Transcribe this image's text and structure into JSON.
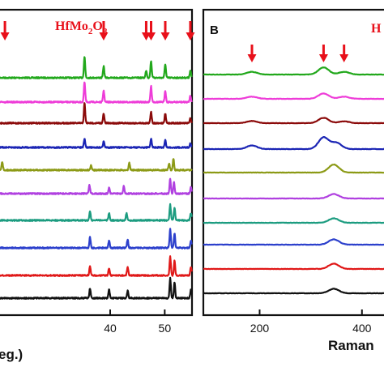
{
  "figure": {
    "panel_a_annotation": {
      "main": "HfMo",
      "sub1": "2",
      "mid": "O",
      "sub2": "8"
    },
    "panel_b_letter": "B",
    "panel_b_annotation_fragment": "H",
    "panel_a_xlabel_fragment": "eg.)",
    "panel_b_xlabel_fragment": "Raman",
    "arrow_color": "#e8101a"
  },
  "chart_data": [
    {
      "type": "line",
      "panel": "A",
      "title": "",
      "xlabel": "eg.)",
      "ylabel": "",
      "xlim": [
        19.5,
        55.0
      ],
      "xticks": [
        40,
        50
      ],
      "tick_labels": [
        "40",
        "50"
      ],
      "grid": false,
      "annotation": "HfMo2O8",
      "arrow_positions": [
        20.7,
        38.8,
        46.6,
        47.5,
        50.1,
        54.7
      ],
      "series": [
        {
          "color": "#22a81c",
          "offset": 9,
          "peaks": [
            [
              35.3,
              1.0
            ],
            [
              38.8,
              0.55
            ],
            [
              46.6,
              0.35
            ],
            [
              47.5,
              0.8
            ],
            [
              50.1,
              0.65
            ],
            [
              54.7,
              0.35
            ]
          ]
        },
        {
          "color": "#ee3cd8",
          "offset": 8,
          "peaks": [
            [
              35.3,
              0.95
            ],
            [
              38.8,
              0.55
            ],
            [
              47.5,
              0.75
            ],
            [
              50.1,
              0.55
            ],
            [
              54.7,
              0.3
            ]
          ]
        },
        {
          "color": "#8b0a0a",
          "offset": 7,
          "peaks": [
            [
              35.3,
              0.95
            ],
            [
              38.8,
              0.45
            ],
            [
              47.5,
              0.55
            ],
            [
              50.1,
              0.45
            ],
            [
              54.7,
              0.25
            ]
          ]
        },
        {
          "color": "#1a24b4",
          "offset": 6,
          "peaks": [
            [
              35.3,
              0.4
            ],
            [
              38.8,
              0.3
            ],
            [
              47.5,
              0.4
            ],
            [
              50.1,
              0.35
            ],
            [
              54.7,
              0.2
            ]
          ]
        },
        {
          "color": "#8c9a16",
          "offset": 5,
          "peaks": [
            [
              20.2,
              0.4
            ],
            [
              36.5,
              0.25
            ],
            [
              43.5,
              0.35
            ],
            [
              50.8,
              0.3
            ],
            [
              51.6,
              0.55
            ]
          ]
        },
        {
          "color": "#b040e0",
          "offset": 4,
          "peaks": [
            [
              36.2,
              0.4
            ],
            [
              39.8,
              0.3
            ],
            [
              42.5,
              0.35
            ],
            [
              51.0,
              0.7
            ],
            [
              51.7,
              0.55
            ],
            [
              54.8,
              0.3
            ]
          ]
        },
        {
          "color": "#1c9c80",
          "offset": 3,
          "peaks": [
            [
              36.3,
              0.45
            ],
            [
              39.8,
              0.35
            ],
            [
              43.0,
              0.35
            ],
            [
              51.0,
              0.75
            ],
            [
              51.8,
              0.6
            ],
            [
              54.8,
              0.35
            ]
          ]
        },
        {
          "color": "#2c40cc",
          "offset": 2,
          "peaks": [
            [
              36.3,
              0.5
            ],
            [
              39.8,
              0.35
            ],
            [
              43.2,
              0.4
            ],
            [
              51.0,
              0.9
            ],
            [
              51.8,
              0.7
            ],
            [
              54.8,
              0.35
            ]
          ]
        },
        {
          "color": "#e01818",
          "offset": 1,
          "peaks": [
            [
              36.3,
              0.45
            ],
            [
              39.8,
              0.35
            ],
            [
              43.2,
              0.4
            ],
            [
              51.0,
              0.9
            ],
            [
              51.8,
              0.7
            ],
            [
              54.8,
              0.4
            ]
          ]
        },
        {
          "color": "#111111",
          "offset": 0,
          "peaks": [
            [
              36.3,
              0.45
            ],
            [
              39.8,
              0.4
            ],
            [
              43.2,
              0.35
            ],
            [
              51.0,
              0.95
            ],
            [
              51.8,
              0.75
            ],
            [
              54.8,
              0.4
            ]
          ]
        }
      ]
    },
    {
      "type": "line",
      "panel": "B",
      "title": "",
      "xlabel": "Raman",
      "ylabel": "",
      "xlim": [
        90,
        470
      ],
      "xticks": [
        200,
        400
      ],
      "tick_labels": [
        "200",
        "400"
      ],
      "grid": false,
      "arrow_positions": [
        185,
        325,
        365
      ],
      "series": [
        {
          "color": "#22a81c",
          "offset": 9,
          "peaks": [
            [
              185,
              0.15
            ],
            [
              325,
              0.4
            ],
            [
              365,
              0.15
            ]
          ]
        },
        {
          "color": "#ee3cd8",
          "offset": 8,
          "peaks": [
            [
              185,
              0.12
            ],
            [
              325,
              0.3
            ],
            [
              365,
              0.12
            ]
          ]
        },
        {
          "color": "#8b0a0a",
          "offset": 7,
          "peaks": [
            [
              185,
              0.12
            ],
            [
              325,
              0.3
            ],
            [
              365,
              0.1
            ]
          ]
        },
        {
          "color": "#1a24b4",
          "offset": 6,
          "peaks": [
            [
              185,
              0.2
            ],
            [
              325,
              0.65
            ],
            [
              350,
              0.35
            ]
          ]
        },
        {
          "color": "#8c9a16",
          "offset": 5,
          "peaks": [
            [
              345,
              0.45
            ]
          ]
        },
        {
          "color": "#b040e0",
          "offset": 4,
          "peaks": [
            [
              345,
              0.25
            ]
          ]
        },
        {
          "color": "#1c9c80",
          "offset": 3,
          "peaks": [
            [
              345,
              0.25
            ]
          ]
        },
        {
          "color": "#2c40cc",
          "offset": 2,
          "peaks": [
            [
              345,
              0.3
            ]
          ]
        },
        {
          "color": "#e01818",
          "offset": 1,
          "peaks": [
            [
              345,
              0.3
            ]
          ]
        },
        {
          "color": "#111111",
          "offset": 0,
          "peaks": [
            [
              345,
              0.25
            ]
          ]
        }
      ]
    }
  ]
}
